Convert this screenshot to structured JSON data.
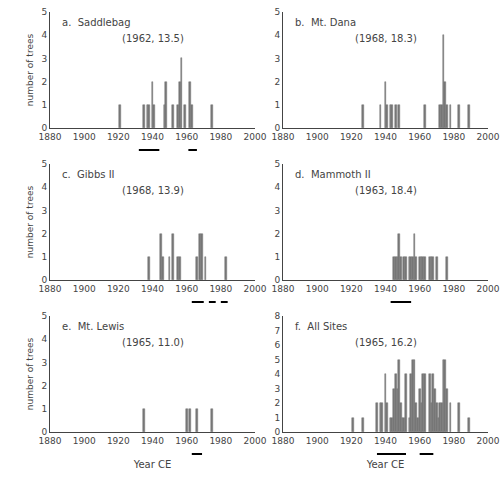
{
  "chart_data": [
    {
      "type": "bar",
      "annotations": [
        "a.  Saddlebag",
        "(1962, 13.5)"
      ],
      "ylabel": "number of trees",
      "x": [
        1921,
        1935,
        1937,
        1938,
        1940,
        1941,
        1947,
        1948,
        1952,
        1955,
        1956,
        1957,
        1959,
        1962,
        1963,
        1975
      ],
      "values": [
        1,
        1,
        1,
        1,
        2,
        1,
        1,
        2,
        1,
        1,
        2,
        3,
        1,
        2,
        1,
        1
      ],
      "color": "#777777",
      "xlim": [
        1880,
        2000
      ],
      "xticks": [
        1880,
        1900,
        1920,
        1940,
        1960,
        1980,
        2000
      ],
      "ylim": [
        0,
        5
      ],
      "yticks": [
        0,
        1,
        2,
        3,
        4,
        5
      ],
      "grid": false,
      "underlines": {
        "ranges": [
          [
            1932,
            1944
          ],
          [
            1961,
            1966
          ]
        ],
        "color": "#000000"
      }
    },
    {
      "type": "bar",
      "annotations": [
        "b.  Mt. Dana",
        "(1968, 18.3)"
      ],
      "x": [
        1927,
        1937,
        1940,
        1941,
        1943,
        1944,
        1946,
        1948,
        1963,
        1972,
        1973,
        1974,
        1975,
        1976,
        1978,
        1983,
        1989
      ],
      "values": [
        1,
        1,
        2,
        1,
        1,
        1,
        1,
        1,
        1,
        1,
        1,
        4,
        2,
        1,
        1,
        1,
        1
      ],
      "color": "#777777",
      "xlim": [
        1880,
        2000
      ],
      "xticks": [
        1880,
        1900,
        1920,
        1940,
        1960,
        1980,
        2000
      ],
      "ylim": [
        0,
        5
      ],
      "yticks": [
        0,
        1,
        2,
        3,
        4,
        5
      ],
      "grid": false
    },
    {
      "type": "bar",
      "annotations": [
        "c.  Gibbs II",
        "(1968, 13.9)"
      ],
      "ylabel": "number of trees",
      "x": [
        1938,
        1945,
        1946,
        1950,
        1952,
        1955,
        1956,
        1966,
        1968,
        1969,
        1971,
        1983
      ],
      "values": [
        1,
        2,
        1,
        1,
        2,
        1,
        1,
        1,
        2,
        2,
        1,
        1
      ],
      "color": "#777777",
      "xlim": [
        1880,
        2000
      ],
      "xticks": [
        1880,
        1900,
        1920,
        1940,
        1960,
        1980,
        2000
      ],
      "ylim": [
        0,
        5
      ],
      "yticks": [
        0,
        1,
        2,
        3,
        4,
        5
      ],
      "grid": false,
      "underlines": {
        "ranges": [
          [
            1963,
            1970
          ],
          [
            1973,
            1977
          ],
          [
            1980,
            1984
          ]
        ],
        "color": "#000000"
      }
    },
    {
      "type": "bar",
      "annotations": [
        "d.  Mammoth II",
        "(1963, 18.4)"
      ],
      "x": [
        1945,
        1946,
        1947,
        1948,
        1949,
        1951,
        1952,
        1954,
        1955,
        1956,
        1957,
        1958,
        1960,
        1961,
        1962,
        1963,
        1966,
        1967,
        1968,
        1970,
        1976
      ],
      "values": [
        1,
        1,
        1,
        2,
        1,
        1,
        1,
        1,
        1,
        1,
        2,
        1,
        1,
        1,
        1,
        1,
        1,
        1,
        1,
        1,
        1
      ],
      "color": "#777777",
      "xlim": [
        1880,
        2000
      ],
      "xticks": [
        1880,
        1900,
        1920,
        1940,
        1960,
        1980,
        2000
      ],
      "ylim": [
        0,
        5
      ],
      "yticks": [
        0,
        1,
        2,
        3,
        4,
        5
      ],
      "grid": false,
      "underlines": {
        "ranges": [
          [
            1943,
            1955
          ]
        ],
        "color": "#000000"
      }
    },
    {
      "type": "bar",
      "annotations": [
        "e.  Mt. Lewis",
        "(1965, 11.0)"
      ],
      "ylabel": "number of trees",
      "xlabel": "Year CE",
      "x": [
        1935,
        1960,
        1962,
        1966,
        1975
      ],
      "values": [
        1,
        1,
        1,
        1,
        1
      ],
      "color": "#777777",
      "xlim": [
        1880,
        2000
      ],
      "xticks": [
        1880,
        1900,
        1920,
        1940,
        1960,
        1980,
        2000
      ],
      "ylim": [
        0,
        5
      ],
      "yticks": [
        0,
        1,
        2,
        3,
        4,
        5
      ],
      "grid": false,
      "underlines": {
        "ranges": [
          [
            1963,
            1969
          ]
        ],
        "color": "#000000"
      }
    },
    {
      "type": "bar",
      "annotations": [
        "f.  All Sites",
        "(1965, 16.2)"
      ],
      "xlabel": "Year CE",
      "x": [
        1921,
        1927,
        1935,
        1937,
        1938,
        1940,
        1941,
        1943,
        1944,
        1945,
        1946,
        1947,
        1948,
        1949,
        1950,
        1951,
        1952,
        1954,
        1955,
        1956,
        1957,
        1958,
        1959,
        1960,
        1961,
        1962,
        1963,
        1966,
        1967,
        1968,
        1969,
        1970,
        1971,
        1972,
        1973,
        1974,
        1975,
        1976,
        1978,
        1983,
        1989
      ],
      "values": [
        1,
        1,
        2,
        2,
        2,
        4,
        2,
        1,
        1,
        3,
        4,
        3,
        5,
        2,
        1,
        1,
        4,
        1,
        4,
        5,
        5,
        2,
        1,
        3,
        2,
        4,
        4,
        4,
        2,
        4,
        3,
        2,
        1,
        2,
        2,
        5,
        5,
        3,
        2,
        2,
        1
      ],
      "color": "#777777",
      "xlim": [
        1880,
        2000
      ],
      "xticks": [
        1880,
        1900,
        1920,
        1940,
        1960,
        1980,
        2000
      ],
      "ylim": [
        0,
        8
      ],
      "yticks": [
        0,
        1,
        2,
        3,
        4,
        5,
        6,
        7,
        8
      ],
      "grid": false,
      "underlines": {
        "ranges": [
          [
            1935,
            1952
          ],
          [
            1960,
            1968
          ]
        ],
        "color": "#000000"
      }
    }
  ]
}
